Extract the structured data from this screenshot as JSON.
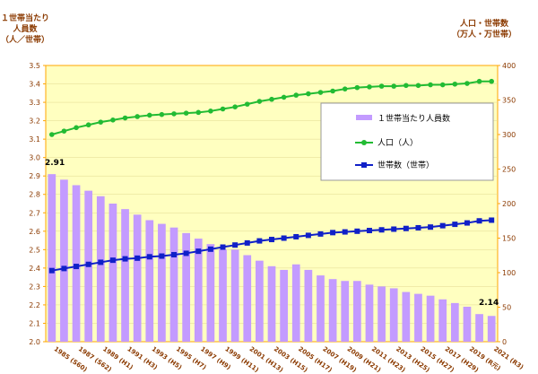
{
  "chart_data": {
    "type": "bar+line",
    "left_axis_title_lines": [
      "１世帯当たり",
      "人員数",
      "（人／世帯）"
    ],
    "right_axis_title_lines": [
      "人口・世帯数",
      "（万人・万世帯）"
    ],
    "left_axis": {
      "min": 2.0,
      "max": 3.5,
      "step": 0.1
    },
    "right_axis": {
      "min": 0,
      "max": 400,
      "step": 50
    },
    "x_labels": [
      "1985 (S60)",
      "1987 (S62)",
      "1989 (H1)",
      "1991 (H3)",
      "1993 (H5)",
      "1995 (H7)",
      "1997 (H9)",
      "1999 (H11)",
      "2001 (H13)",
      "2003 (H15)",
      "2005 (H17)",
      "2007 (H19)",
      "2009 (H21)",
      "2011 (H23)",
      "2013 (H25)",
      "2015 (H27)",
      "2017 (H29)",
      "2019 (R元)",
      "2021 (R3)"
    ],
    "years": [
      1985,
      1986,
      1987,
      1988,
      1989,
      1990,
      1991,
      1992,
      1993,
      1994,
      1995,
      1996,
      1997,
      1998,
      1999,
      2000,
      2001,
      2002,
      2003,
      2004,
      2005,
      2006,
      2007,
      2008,
      2009,
      2010,
      2011,
      2012,
      2013,
      2014,
      2015,
      2016,
      2017,
      2018,
      2019,
      2020,
      2021
    ],
    "series": [
      {
        "name": "１世帯当たり人員数",
        "kind": "bar",
        "axis": "left",
        "color": "#c39bff",
        "values": [
          2.91,
          2.88,
          2.85,
          2.82,
          2.79,
          2.75,
          2.72,
          2.69,
          2.66,
          2.64,
          2.62,
          2.59,
          2.56,
          2.53,
          2.5,
          2.5,
          2.47,
          2.44,
          2.41,
          2.39,
          2.42,
          2.39,
          2.36,
          2.34,
          2.33,
          2.33,
          2.31,
          2.3,
          2.29,
          2.27,
          2.26,
          2.25,
          2.23,
          2.21,
          2.19,
          2.15,
          2.14
        ]
      },
      {
        "name": "人口（人）",
        "kind": "line",
        "axis": "right",
        "color": "#22bb33",
        "values": [
          300,
          305,
          310,
          314,
          318,
          321,
          324,
          326,
          328,
          329,
          330,
          331,
          332,
          334,
          337,
          340,
          344,
          348,
          351,
          354,
          357,
          359,
          361,
          363,
          366,
          368,
          369,
          370,
          370,
          371,
          371,
          372,
          372,
          373,
          374,
          377,
          377
        ]
      },
      {
        "name": "世帯数（世帯）",
        "kind": "line",
        "axis": "right",
        "color": "#1020c8",
        "values": [
          103,
          106,
          109,
          112,
          115,
          118,
          120,
          121,
          123,
          124,
          126,
          128,
          131,
          134,
          137,
          140,
          143,
          146,
          148,
          150,
          152,
          154,
          156,
          158,
          159,
          160,
          161,
          162,
          163,
          164,
          165,
          166,
          168,
          170,
          172,
          175,
          176
        ]
      }
    ],
    "annotations": [
      {
        "text": "2.91",
        "series_index": 0,
        "point_index": 0
      },
      {
        "text": "2.14",
        "series_index": 0,
        "point_index": 36
      }
    ],
    "plot_background": "#ffffc0",
    "axis_color": "#ffa500"
  }
}
